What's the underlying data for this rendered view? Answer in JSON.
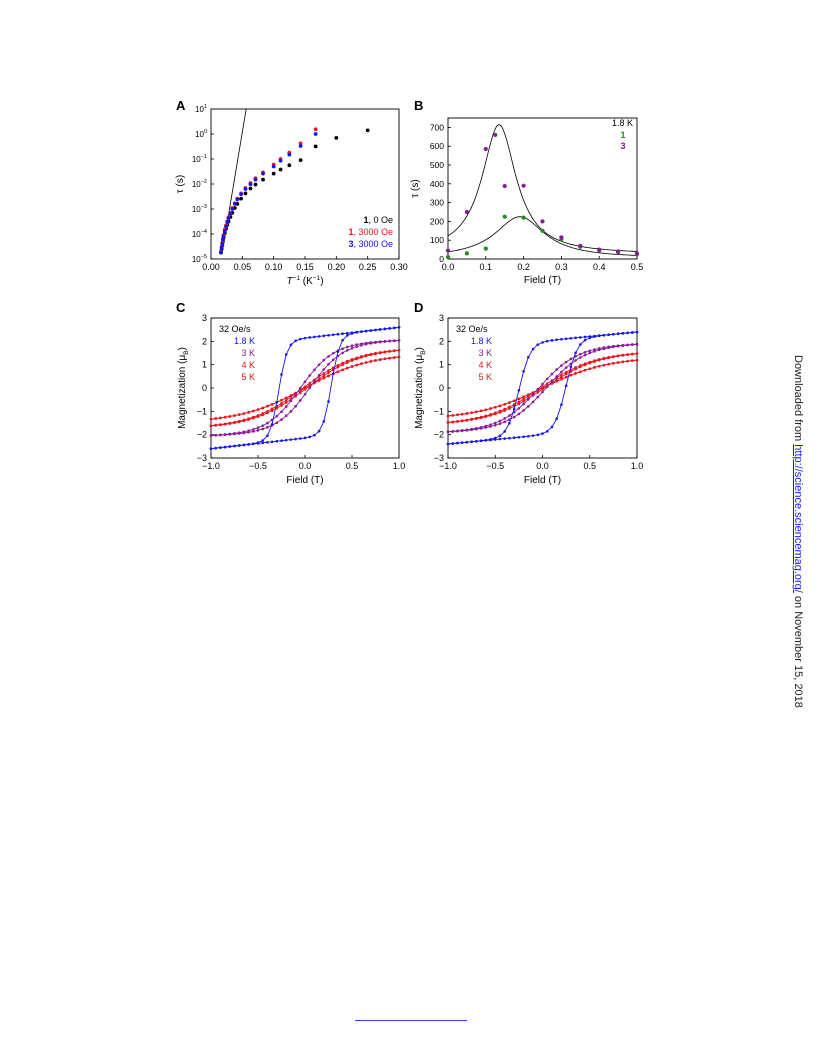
{
  "colors": {
    "black": "#000000",
    "red": "#e8141e",
    "blue": "#1515ee",
    "green": "#228b22",
    "purple": "#8a1a9a",
    "axis": "#000000"
  },
  "sidebar_note": {
    "prefix": "Downloaded from ",
    "link": "http://science.sciencemag.org/",
    "suffix": " on November 15, 2018"
  },
  "chart_data": [
    {
      "panel": "A",
      "type": "scatter",
      "xlabel_var": "T",
      "xlabel_exp": "−1",
      "xlabel_unit": " (K",
      "xlabel_unit_exp": "−1",
      "xlabel_close": ")",
      "ylabel": "τ (s)",
      "yscale": "log",
      "xlim": [
        0,
        0.3
      ],
      "ylim_exp": [
        -5,
        1
      ],
      "xticks": [
        "0.00",
        "0.05",
        "0.10",
        "0.15",
        "0.20",
        "0.25",
        "0.30"
      ],
      "yticks_base": "10",
      "yticks_exp": [
        "1",
        "0",
        "−1",
        "−2",
        "−3",
        "−4",
        "−5"
      ],
      "legend": [
        {
          "bold": "1",
          "rest": ", 0 Oe",
          "color": "#000000"
        },
        {
          "bold": "1",
          "rest": ", 3000 Oe",
          "color": "#e8141e"
        },
        {
          "bold": "3",
          "rest": ", 3000 Oe",
          "color": "#1515ee"
        }
      ],
      "series": [
        {
          "name": "1, 0 Oe",
          "color": "#000000",
          "x": [
            0.016,
            0.017,
            0.018,
            0.019,
            0.02,
            0.022,
            0.024,
            0.026,
            0.028,
            0.031,
            0.034,
            0.038,
            0.042,
            0.048,
            0.055,
            0.063,
            0.071,
            0.083,
            0.1,
            0.111,
            0.125,
            0.143,
            0.167,
            0.2,
            0.25
          ],
          "y": [
            1.8e-05,
            2.5e-05,
            3.5e-05,
            5e-05,
            7e-05,
            0.00011,
            0.00016,
            0.00023,
            0.00032,
            0.00048,
            0.0007,
            0.0011,
            0.0016,
            0.0026,
            0.0042,
            0.0066,
            0.0095,
            0.015,
            0.026,
            0.038,
            0.056,
            0.09,
            0.32,
            0.7,
            1.4
          ]
        },
        {
          "name": "1, 3000 Oe",
          "color": "#e8141e",
          "x": [
            0.016,
            0.017,
            0.018,
            0.019,
            0.02,
            0.022,
            0.024,
            0.026,
            0.028,
            0.031,
            0.034,
            0.038,
            0.042,
            0.048,
            0.055,
            0.063,
            0.071,
            0.083,
            0.1,
            0.111,
            0.125,
            0.143,
            0.167
          ],
          "y": [
            2e-05,
            3e-05,
            4.5e-05,
            6.5e-05,
            9e-05,
            0.00015,
            0.00022,
            0.00032,
            0.00047,
            0.0007,
            0.0011,
            0.0017,
            0.0026,
            0.0042,
            0.0069,
            0.011,
            0.017,
            0.029,
            0.06,
            0.1,
            0.18,
            0.42,
            1.55
          ]
        },
        {
          "name": "3, 3000 Oe",
          "color": "#1515ee",
          "x": [
            0.016,
            0.017,
            0.018,
            0.019,
            0.02,
            0.022,
            0.024,
            0.026,
            0.028,
            0.031,
            0.034,
            0.038,
            0.042,
            0.048,
            0.055,
            0.063,
            0.071,
            0.083,
            0.1,
            0.111,
            0.125,
            0.143,
            0.167
          ],
          "y": [
            1.9e-05,
            2.8e-05,
            4e-05,
            6e-05,
            8.2e-05,
            0.00013,
            0.0002,
            0.0003,
            0.00043,
            0.00065,
            0.001,
            0.0016,
            0.0024,
            0.0039,
            0.0063,
            0.0098,
            0.015,
            0.026,
            0.05,
            0.085,
            0.15,
            0.33,
            1.0
          ]
        }
      ],
      "fit_line": {
        "x": [
          0.0175,
          0.1
        ],
        "log10_y_at_x0": -4.8,
        "log10_y_per_unit_x": 150
      }
    },
    {
      "panel": "B",
      "type": "scatter",
      "xlabel": "Field (T)",
      "ylabel": "τ (s)",
      "xlim": [
        0,
        0.5
      ],
      "ylim": [
        0,
        750
      ],
      "xticks": [
        "0.0",
        "0.1",
        "0.2",
        "0.3",
        "0.4",
        "0.5"
      ],
      "yticks": [
        "0",
        "100",
        "200",
        "300",
        "400",
        "500",
        "600",
        "700"
      ],
      "legend_title": "1.8 K",
      "legend": [
        {
          "label": "1",
          "color": "#228b22"
        },
        {
          "label": "3",
          "color": "#8a1a9a"
        }
      ],
      "series": [
        {
          "name": "1",
          "color": "#228b22",
          "x": [
            0.0,
            0.05,
            0.1,
            0.15,
            0.2,
            0.25,
            0.3,
            0.35,
            0.4,
            0.45,
            0.5
          ],
          "y": [
            10,
            30,
            55,
            225,
            220,
            150,
            105,
            65,
            45,
            35,
            25
          ]
        },
        {
          "name": "3",
          "color": "#8a1a9a",
          "x": [
            0.0,
            0.05,
            0.1,
            0.125,
            0.15,
            0.2,
            0.25,
            0.3,
            0.35,
            0.4,
            0.45,
            0.5
          ],
          "y": [
            45,
            250,
            585,
            660,
            388,
            390,
            200,
            115,
            70,
            50,
            40,
            30
          ]
        }
      ],
      "fits": [
        {
          "peak_x": 0.135,
          "peak_y": 715,
          "width": 0.055,
          "base": 25
        },
        {
          "peak_x": 0.19,
          "peak_y": 225,
          "width": 0.08,
          "base": 5
        }
      ]
    },
    {
      "panel": "C",
      "type": "line",
      "xlabel": "Field (T)",
      "ylabel_main": "Magnetization (μ",
      "ylabel_sub": "B",
      "ylabel_close": ")",
      "xlim": [
        -1.0,
        1.0
      ],
      "ylim": [
        -3,
        3
      ],
      "xticks": [
        "−1.0",
        "−0.5",
        "0.0",
        "0.5",
        "1.0"
      ],
      "yticks": [
        "3",
        "2",
        "1",
        "0",
        "−1",
        "−2",
        "−3"
      ],
      "legend_title": "32 Oe/s",
      "legend": [
        {
          "label": "1.8 K",
          "color": "#1515ee"
        },
        {
          "label": "3 K",
          "color": "#8a1a9a"
        },
        {
          "label": "4 K",
          "color": "#e8141e"
        },
        {
          "label": "5 K",
          "color": "#e8141e"
        }
      ],
      "series": [
        {
          "name": "1.8 K",
          "color": "#1515ee",
          "ms": 2.6,
          "slope": 1.3,
          "hc": 0.28,
          "width": 0.09
        },
        {
          "name": "3 K",
          "color": "#8a1a9a",
          "ms": 2.05,
          "slope": 0.45,
          "hc": 0.05,
          "width": 0.35
        },
        {
          "name": "4 K",
          "color": "#e8141e",
          "ms": 1.7,
          "slope": 0.3,
          "hc": 0.02,
          "width": 0.55
        },
        {
          "name": "5 K",
          "color": "#e8141e",
          "ms": 1.45,
          "slope": 0.28,
          "hc": 0.0,
          "width": 0.65
        }
      ]
    },
    {
      "panel": "D",
      "type": "line",
      "xlabel": "Field (T)",
      "ylabel_main": "Magnetization (μ",
      "ylabel_sub": "B",
      "ylabel_close": ")",
      "xlim": [
        -1.0,
        1.0
      ],
      "ylim": [
        -3,
        3
      ],
      "xticks": [
        "−1.0",
        "−0.5",
        "0.0",
        "0.5",
        "1.0"
      ],
      "yticks": [
        "3",
        "2",
        "1",
        "0",
        "−1",
        "−2",
        "−3"
      ],
      "legend_title": "32 Oe/s",
      "legend": [
        {
          "label": "1.8 K",
          "color": "#1515ee"
        },
        {
          "label": "3 K",
          "color": "#8a1a9a"
        },
        {
          "label": "4 K",
          "color": "#e8141e"
        },
        {
          "label": "5 K",
          "color": "#e8141e"
        }
      ],
      "series": [
        {
          "name": "1.8 K",
          "color": "#1515ee",
          "ms": 2.4,
          "slope": 1.1,
          "hc": 0.25,
          "width": 0.12
        },
        {
          "name": "3 K",
          "color": "#8a1a9a",
          "ms": 1.9,
          "slope": 0.5,
          "hc": 0.04,
          "width": 0.4
        },
        {
          "name": "4 K",
          "color": "#e8141e",
          "ms": 1.55,
          "slope": 0.35,
          "hc": 0.02,
          "width": 0.55
        },
        {
          "name": "5 K",
          "color": "#e8141e",
          "ms": 1.3,
          "slope": 0.3,
          "hc": 0.0,
          "width": 0.65
        }
      ]
    }
  ]
}
